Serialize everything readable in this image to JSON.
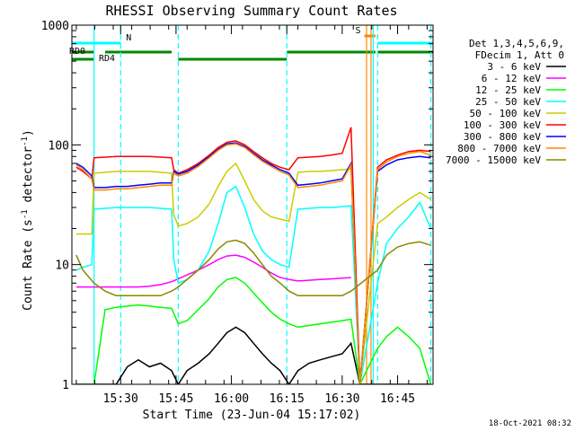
{
  "chart_data": {
    "type": "line",
    "title": "RHESSI Observing Summary Count Rates",
    "xlabel": "Start Time (23-Jun-04 15:17:02)",
    "ylabel": "Count Rate (s⁻¹ detector⁻¹)",
    "ylabel_main": "Count Rate (s",
    "ylabel_sup1": "-1",
    "ylabel_mid": " detector",
    "ylabel_sup2": "-1",
    "ylabel_end": ")",
    "y_scale": "log",
    "ylim": [
      1,
      1000
    ],
    "x_range_minutes": [
      15.28,
      16.91
    ],
    "y_ticks": [
      {
        "value": 1,
        "label": "1"
      },
      {
        "value": 10,
        "label": "10"
      },
      {
        "value": 100,
        "label": "100"
      },
      {
        "value": 1000,
        "label": "1000"
      }
    ],
    "x_ticks": [
      {
        "value": 15.5,
        "label": "15:30"
      },
      {
        "value": 15.75,
        "label": "15:45"
      },
      {
        "value": 16.0,
        "label": "16:00"
      },
      {
        "value": 16.25,
        "label": "16:15"
      },
      {
        "value": 16.5,
        "label": "16:30"
      },
      {
        "value": 16.75,
        "label": "16:45"
      }
    ],
    "legend": {
      "position": "right",
      "header": [
        "Det 1,3,4,5,6,9,",
        "FDecim 1, Att 0"
      ]
    },
    "series": [
      {
        "name": "3 - 6 keV",
        "color": "#000000",
        "x": [
          15.3,
          15.33,
          15.38,
          15.43,
          15.48,
          15.53,
          15.58,
          15.63,
          15.68,
          15.73,
          15.76,
          15.8,
          15.85,
          15.9,
          15.94,
          15.98,
          16.02,
          16.06,
          16.1,
          16.14,
          16.18,
          16.22,
          16.26,
          16.3,
          16.35,
          16.4,
          16.45,
          16.5,
          16.54,
          16.58,
          16.66,
          16.7,
          16.75,
          16.8,
          16.85,
          16.9
        ],
        "y": [
          1.0,
          1.0,
          1.0,
          1.0,
          1.0,
          1.4,
          1.6,
          1.4,
          1.5,
          1.3,
          1.0,
          1.3,
          1.5,
          1.8,
          2.2,
          2.7,
          3.0,
          2.7,
          2.2,
          1.8,
          1.5,
          1.3,
          1.0,
          1.3,
          1.5,
          1.6,
          1.7,
          1.8,
          2.2,
          1.0,
          1.0,
          1.0,
          1.0,
          1.0,
          1.0,
          1.0
        ]
      },
      {
        "name": "6 - 12 keV",
        "color": "#ff00ff",
        "x": [
          15.3,
          15.33,
          15.38,
          15.43,
          15.48,
          15.53,
          15.58,
          15.63,
          15.68,
          15.73,
          15.76,
          15.8,
          15.85,
          15.9,
          15.94,
          15.98,
          16.02,
          16.06,
          16.1,
          16.14,
          16.18,
          16.22,
          16.26,
          16.3,
          16.35,
          16.4,
          16.45,
          16.5,
          16.54
        ],
        "y": [
          6.5,
          6.5,
          6.5,
          6.5,
          6.5,
          6.5,
          6.5,
          6.6,
          6.8,
          7.2,
          7.6,
          8.2,
          9.0,
          10.0,
          11.0,
          11.8,
          12.0,
          11.5,
          10.5,
          9.5,
          8.5,
          7.8,
          7.5,
          7.3,
          7.4,
          7.5,
          7.6,
          7.7,
          7.8
        ]
      },
      {
        "name": "12 - 25 keV",
        "color": "#00ff00",
        "x": [
          15.3,
          15.33,
          15.38,
          15.43,
          15.48,
          15.53,
          15.58,
          15.63,
          15.68,
          15.73,
          15.76,
          15.8,
          15.85,
          15.9,
          15.94,
          15.98,
          16.02,
          16.06,
          16.1,
          16.14,
          16.18,
          16.22,
          16.26,
          16.3,
          16.35,
          16.4,
          16.45,
          16.5,
          16.54,
          16.58,
          16.66,
          16.7,
          16.75,
          16.8,
          16.85,
          16.9
        ],
        "y": [
          1.0,
          1.0,
          1.0,
          4.2,
          4.4,
          4.5,
          4.6,
          4.5,
          4.4,
          4.3,
          3.2,
          3.4,
          4.2,
          5.2,
          6.5,
          7.5,
          7.8,
          7.0,
          5.8,
          4.8,
          4.0,
          3.5,
          3.2,
          3.0,
          3.1,
          3.2,
          3.3,
          3.4,
          3.5,
          1.0,
          2.0,
          2.5,
          3.0,
          2.5,
          2.0,
          1.0
        ]
      },
      {
        "name": "25 - 50 keV",
        "color": "#00ffff",
        "x": [
          15.3,
          15.33,
          15.37,
          15.38,
          15.43,
          15.48,
          15.53,
          15.58,
          15.63,
          15.68,
          15.73,
          15.74,
          15.76,
          15.8,
          15.85,
          15.9,
          15.94,
          15.98,
          16.02,
          16.06,
          16.1,
          16.14,
          16.18,
          16.22,
          16.26,
          16.3,
          16.35,
          16.4,
          16.45,
          16.5,
          16.54,
          16.58,
          16.66,
          16.7,
          16.75,
          16.8,
          16.85,
          16.9
        ],
        "y": [
          9.0,
          9.5,
          10.0,
          29.0,
          29.5,
          30.0,
          30.0,
          30.0,
          30.0,
          29.5,
          29.0,
          11.0,
          7.0,
          7.5,
          9.0,
          13.0,
          22.0,
          40.0,
          45.0,
          30.0,
          18.0,
          13.0,
          11.0,
          10.0,
          9.5,
          29.0,
          29.5,
          30.0,
          30.0,
          30.5,
          31.0,
          1.0,
          7.0,
          15.0,
          20.0,
          25.0,
          33.0,
          20.0
        ]
      },
      {
        "name": "50 - 100 keV",
        "color": "#cccc00",
        "x": [
          15.3,
          15.33,
          15.37,
          15.38,
          15.43,
          15.48,
          15.53,
          15.58,
          15.63,
          15.68,
          15.73,
          15.74,
          15.76,
          15.8,
          15.85,
          15.9,
          15.94,
          15.98,
          16.02,
          16.06,
          16.1,
          16.14,
          16.18,
          16.22,
          16.26,
          16.3,
          16.35,
          16.4,
          16.45,
          16.5,
          16.54,
          16.58,
          16.66,
          16.7,
          16.75,
          16.8,
          16.85,
          16.9
        ],
        "y": [
          18.0,
          18.0,
          18.0,
          58.0,
          59.0,
          60.0,
          60.0,
          60.0,
          60.0,
          59.0,
          58.0,
          26.0,
          21.0,
          22.0,
          25.0,
          32.0,
          45.0,
          60.0,
          70.0,
          50.0,
          35.0,
          28.0,
          25.0,
          24.0,
          23.0,
          59.0,
          60.0,
          60.0,
          61.0,
          62.0,
          63.0,
          1.0,
          22.0,
          25.0,
          30.0,
          35.0,
          40.0,
          35.0
        ]
      },
      {
        "name": "100 - 300 keV",
        "color": "#ff0000",
        "x": [
          15.3,
          15.33,
          15.37,
          15.38,
          15.43,
          15.48,
          15.53,
          15.58,
          15.63,
          15.68,
          15.73,
          15.74,
          15.76,
          15.8,
          15.85,
          15.9,
          15.94,
          15.98,
          16.02,
          16.06,
          16.1,
          16.14,
          16.18,
          16.22,
          16.26,
          16.3,
          16.35,
          16.4,
          16.45,
          16.5,
          16.54,
          16.58,
          16.66,
          16.7,
          16.75,
          16.8,
          16.85,
          16.9
        ],
        "y": [
          65.0,
          60.0,
          52.0,
          78.0,
          79.0,
          80.0,
          80.0,
          80.0,
          80.0,
          79.0,
          78.0,
          62.0,
          58.0,
          62.0,
          70.0,
          82.0,
          95.0,
          105.0,
          108.0,
          100.0,
          88.0,
          78.0,
          70.0,
          65.0,
          62.0,
          78.0,
          79.0,
          80.0,
          82.0,
          85.0,
          140.0,
          1.0,
          65.0,
          75.0,
          82.0,
          88.0,
          90.0,
          88.0
        ]
      },
      {
        "name": "300 - 800 keV",
        "color": "#0000ff",
        "x": [
          15.3,
          15.33,
          15.37,
          15.38,
          15.43,
          15.48,
          15.53,
          15.58,
          15.63,
          15.68,
          15.73,
          15.74,
          15.76,
          15.8,
          15.85,
          15.9,
          15.94,
          15.98,
          16.02,
          16.06,
          16.1,
          16.14,
          16.18,
          16.22,
          16.26,
          16.3,
          16.35,
          16.4,
          16.45,
          16.5,
          16.54,
          16.58,
          16.66,
          16.7,
          16.75,
          16.8,
          16.85,
          16.9
        ],
        "y": [
          70.0,
          65.0,
          55.0,
          44.0,
          44.0,
          45.0,
          45.0,
          46.0,
          47.0,
          48.0,
          48.0,
          60.0,
          57.0,
          60.0,
          68.0,
          80.0,
          92.0,
          102.0,
          104.0,
          97.0,
          85.0,
          75.0,
          68.0,
          62.0,
          58.0,
          46.0,
          47.0,
          48.0,
          50.0,
          52.0,
          70.0,
          1.0,
          60.0,
          68.0,
          75.0,
          78.0,
          80.0,
          78.0
        ]
      },
      {
        "name": "800 - 7000 keV",
        "color": "#ff8800",
        "x": [
          15.3,
          15.33,
          15.37,
          15.38,
          15.43,
          15.48,
          15.53,
          15.58,
          15.63,
          15.68,
          15.73,
          15.74,
          15.76,
          15.8,
          15.85,
          15.9,
          15.94,
          15.98,
          16.02,
          16.06,
          16.1,
          16.14,
          16.18,
          16.22,
          16.26,
          16.3,
          16.35,
          16.4,
          16.45,
          16.5,
          16.54,
          16.58,
          16.66,
          16.7,
          16.75,
          16.8,
          16.85,
          16.9
        ],
        "y": [
          68.0,
          62.0,
          52.0,
          42.0,
          42.0,
          43.0,
          43.0,
          44.0,
          45.0,
          46.0,
          46.0,
          58.0,
          55.0,
          58.0,
          66.0,
          78.0,
          90.0,
          100.0,
          102.0,
          95.0,
          83.0,
          73.0,
          66.0,
          60.0,
          56.0,
          44.0,
          45.0,
          46.0,
          48.0,
          50.0,
          68.0,
          1.0,
          62.0,
          72.0,
          80.0,
          85.0,
          88.0,
          82.0
        ]
      },
      {
        "name": "7000 - 15000 keV",
        "color": "#888800",
        "x": [
          15.3,
          15.33,
          15.38,
          15.43,
          15.48,
          15.53,
          15.58,
          15.63,
          15.68,
          15.73,
          15.76,
          15.8,
          15.85,
          15.9,
          15.94,
          15.98,
          16.02,
          16.06,
          16.1,
          16.14,
          16.18,
          16.22,
          16.26,
          16.3,
          16.35,
          16.4,
          16.45,
          16.5,
          16.54,
          16.66,
          16.7,
          16.75,
          16.8,
          16.85,
          16.9
        ],
        "y": [
          12.0,
          9.0,
          7.0,
          6.0,
          5.5,
          5.5,
          5.5,
          5.5,
          5.5,
          6.0,
          6.5,
          7.5,
          9.0,
          11.0,
          13.5,
          15.5,
          16.0,
          15.0,
          12.5,
          10.0,
          8.0,
          7.0,
          6.0,
          5.5,
          5.5,
          5.5,
          5.5,
          5.5,
          6.0,
          9.0,
          12.0,
          14.0,
          15.0,
          15.5,
          14.5
        ]
      }
    ],
    "state_bars": [
      {
        "name": "N",
        "color": "#00ffff",
        "level": 1,
        "segments": [
          [
            15.28,
            15.5
          ],
          [
            16.66,
            16.91
          ]
        ]
      },
      {
        "name": "S",
        "color": "#ff8800",
        "level": 0,
        "segments": [
          [
            16.6,
            16.65
          ]
        ]
      },
      {
        "name": "RD0",
        "color": "#008800",
        "level": 2,
        "segments": [
          [
            15.28,
            15.38
          ],
          [
            15.43,
            15.73
          ],
          [
            16.25,
            16.65
          ],
          [
            16.66,
            16.91
          ]
        ]
      },
      {
        "name": "RD4",
        "color": "#008800",
        "level": 3,
        "segments": [
          [
            15.28,
            15.38
          ],
          [
            15.76,
            16.25
          ]
        ]
      }
    ],
    "saa_lines": [
      {
        "x": 15.38,
        "color": "#00ffff",
        "style": "solid"
      },
      {
        "x": 15.5,
        "color": "#00ffff",
        "style": "dashed"
      },
      {
        "x": 15.76,
        "color": "#00ffff",
        "style": "dashed"
      },
      {
        "x": 16.25,
        "color": "#00ffff",
        "style": "dashed"
      },
      {
        "x": 16.61,
        "color": "#ff8800",
        "style": "solid"
      },
      {
        "x": 16.63,
        "color": "#ff8800",
        "style": "solid"
      },
      {
        "x": 16.64,
        "color": "#00ffff",
        "style": "solid"
      },
      {
        "x": 16.66,
        "color": "#00ffff",
        "style": "dashed"
      },
      {
        "x": 16.9,
        "color": "#00ffff",
        "style": "dashed"
      }
    ],
    "timestamp": "18-Oct-2021 08:32"
  }
}
